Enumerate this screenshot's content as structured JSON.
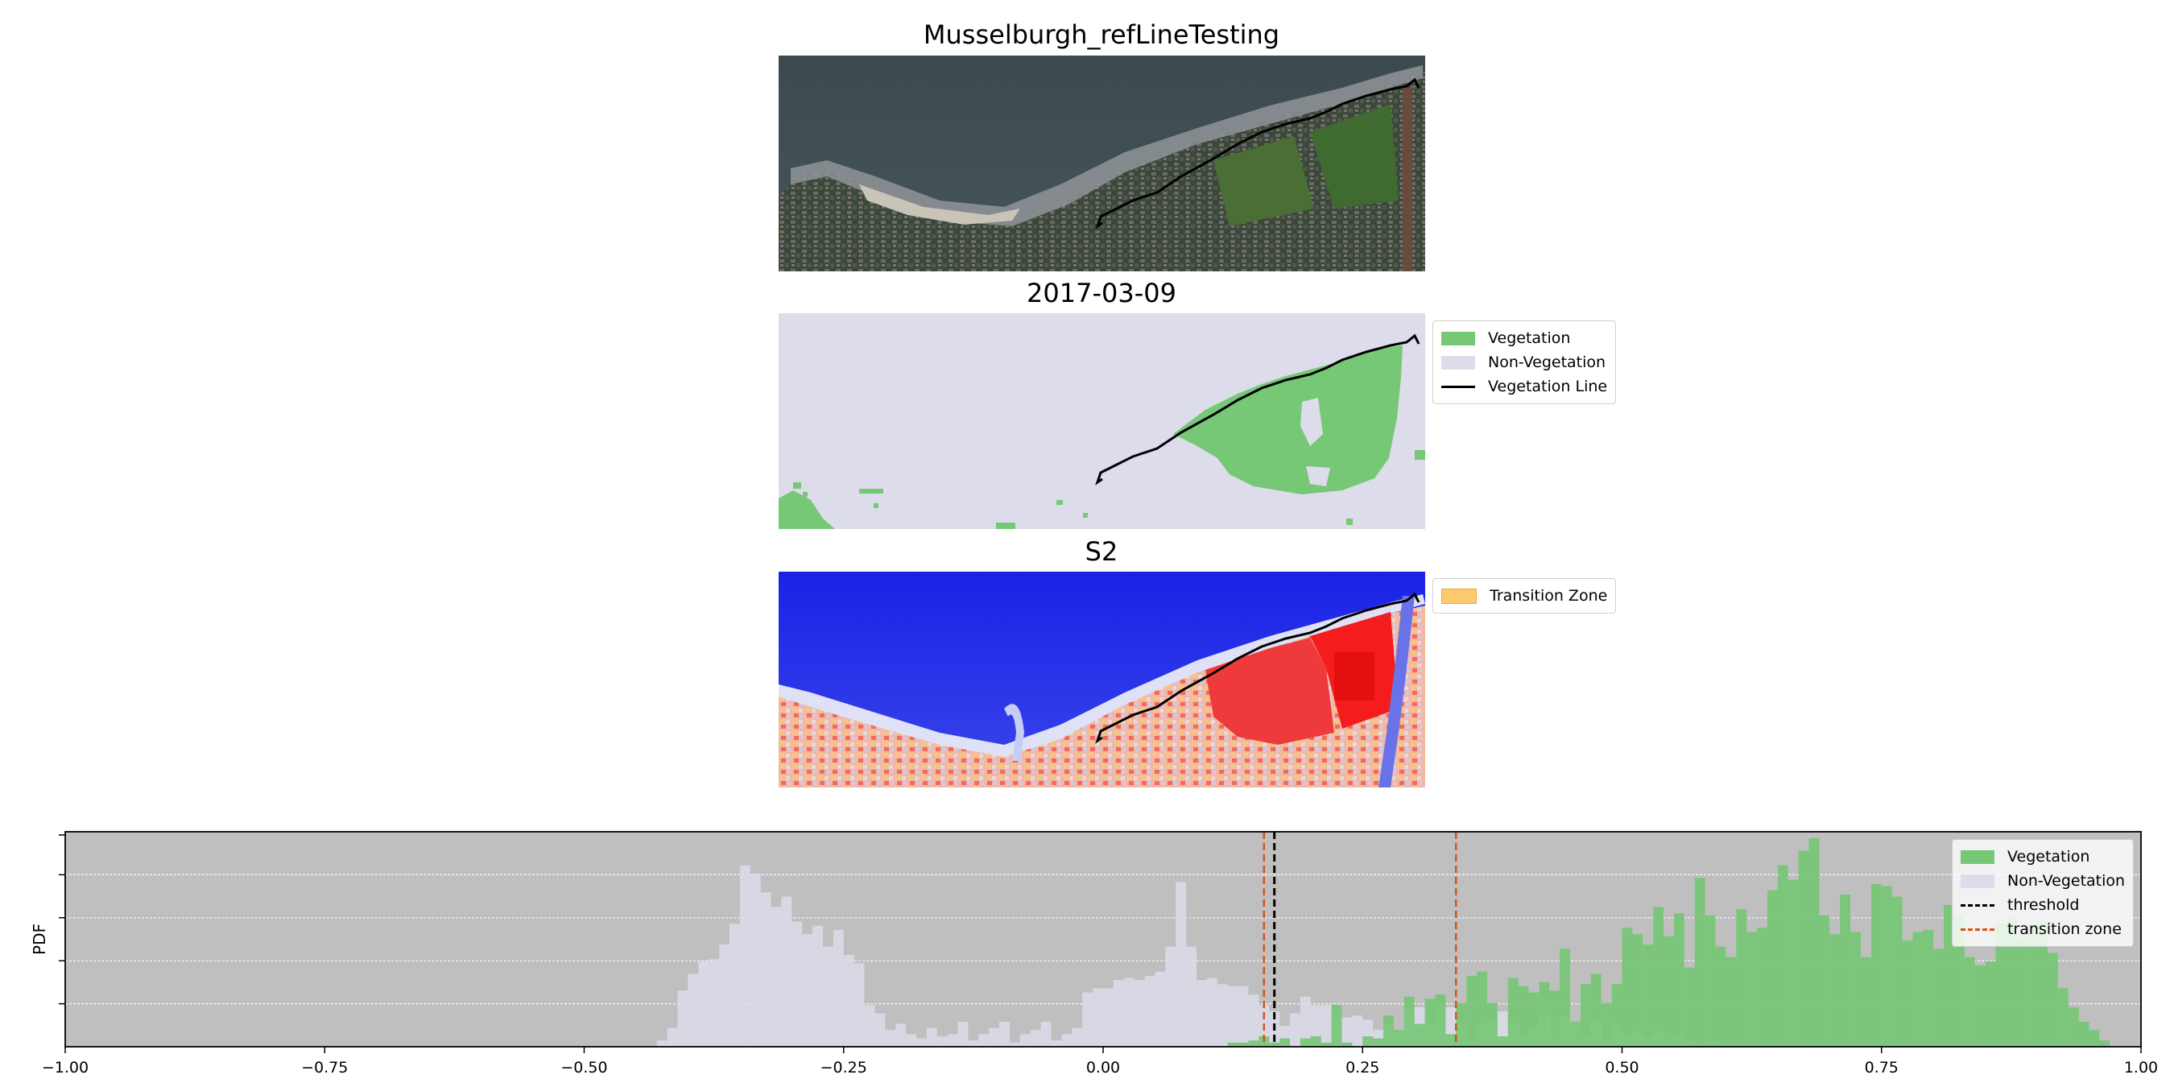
{
  "titles": {
    "rgb": "Musselburgh_refLineTesting",
    "classified": "2017-03-09",
    "index": "S2"
  },
  "legends": {
    "classified": [
      {
        "label": "Vegetation",
        "kind": "patch",
        "color": "#76c776"
      },
      {
        "label": "Non-Vegetation",
        "kind": "patch",
        "color": "#dcdcea"
      },
      {
        "label": "Vegetation Line",
        "kind": "line",
        "color": "#000000",
        "style": "solid"
      }
    ],
    "index": [
      {
        "label": "Transition Zone",
        "kind": "patch",
        "color": "#fdcb6e"
      }
    ],
    "histogram": [
      {
        "label": "Vegetation",
        "kind": "patch",
        "color": "#76c776"
      },
      {
        "label": "Non-Vegetation",
        "kind": "patch",
        "color": "#dcdcea"
      },
      {
        "label": "threshold",
        "kind": "line",
        "color": "#000000",
        "style": "dashed"
      },
      {
        "label": "transition zone",
        "kind": "line",
        "color": "#d6531c",
        "style": "dashed"
      }
    ]
  },
  "chart_data": {
    "type": "bar",
    "title": "",
    "xlabel": "",
    "ylabel": "PDF",
    "xlim": [
      -1.0,
      1.0
    ],
    "ylim": [
      0,
      1.0
    ],
    "xticks": [
      "−1.00",
      "−0.75",
      "−0.50",
      "−0.25",
      "0.00",
      "0.25",
      "0.50",
      "0.75",
      "1.00"
    ],
    "xtick_values": [
      -1.0,
      -0.75,
      -0.5,
      -0.25,
      0.0,
      0.25,
      0.5,
      0.75,
      1.0
    ],
    "grid": "y",
    "background": "#bfbfbf",
    "legend_position": "top-right",
    "bin_width": 0.01,
    "threshold": 0.165,
    "transition_zone": [
      0.155,
      0.34
    ],
    "series": [
      {
        "name": "Non-Vegetation",
        "color": "#dcdcea",
        "bin_start": -0.43,
        "values": [
          0.03,
          0.09,
          0.27,
          0.35,
          0.41,
          0.42,
          0.49,
          0.59,
          0.87,
          0.83,
          0.74,
          0.67,
          0.72,
          0.6,
          0.54,
          0.58,
          0.48,
          0.56,
          0.44,
          0.4,
          0.2,
          0.16,
          0.08,
          0.11,
          0.06,
          0.04,
          0.09,
          0.05,
          0.06,
          0.12,
          0.03,
          0.06,
          0.09,
          0.12,
          0.02,
          0.06,
          0.08,
          0.12,
          0.03,
          0.06,
          0.09,
          0.26,
          0.28,
          0.28,
          0.32,
          0.33,
          0.32,
          0.34,
          0.36,
          0.48,
          0.79,
          0.48,
          0.32,
          0.33,
          0.3,
          0.29,
          0.29,
          0.25,
          0.2,
          0.17,
          0.1,
          0.16,
          0.24,
          0.2,
          0.2,
          0.18,
          0.14,
          0.15,
          0.13,
          0.08,
          0.11,
          0.07,
          0.18,
          0.19,
          0.11,
          0.2,
          0.19,
          0.11,
          0.03,
          0.1,
          0.12,
          0.17,
          0.11,
          0.06,
          0.09,
          0.15,
          0.04,
          0.14,
          0.12,
          0.05,
          0.12,
          0.04,
          0.11,
          0.06,
          0.08,
          0.05,
          0.08,
          0.04,
          0.06,
          0.03,
          0.02,
          0.03,
          0.02
        ]
      },
      {
        "name": "Vegetation",
        "color": "#76c776",
        "bin_start": 0.12,
        "values": [
          0.02,
          0.02,
          0.03,
          0.05,
          0.02,
          0.04,
          0.0,
          0.04,
          0.05,
          0.02,
          0.2,
          0.02,
          0.0,
          0.05,
          0.04,
          0.15,
          0.08,
          0.24,
          0.11,
          0.23,
          0.25,
          0.06,
          0.21,
          0.34,
          0.36,
          0.21,
          0.05,
          0.33,
          0.29,
          0.26,
          0.31,
          0.27,
          0.47,
          0.12,
          0.3,
          0.35,
          0.21,
          0.3,
          0.57,
          0.54,
          0.49,
          0.67,
          0.53,
          0.64,
          0.38,
          0.81,
          0.63,
          0.48,
          0.43,
          0.66,
          0.55,
          0.57,
          0.75,
          0.87,
          0.8,
          0.94,
          1.0,
          0.63,
          0.54,
          0.73,
          0.55,
          0.43,
          0.78,
          0.77,
          0.72,
          0.51,
          0.55,
          0.56,
          0.47,
          0.68,
          0.63,
          0.43,
          0.39,
          0.41,
          0.59,
          0.62,
          0.52,
          0.58,
          0.6,
          0.45,
          0.28,
          0.19,
          0.12,
          0.08,
          0.03
        ]
      }
    ]
  }
}
